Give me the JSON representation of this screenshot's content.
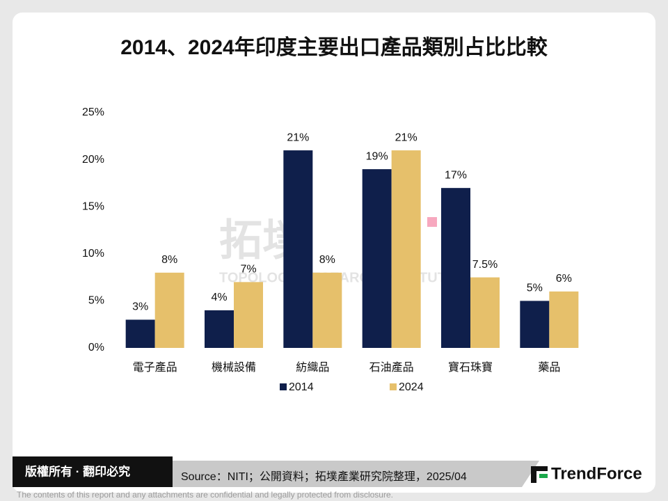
{
  "chart_data": {
    "type": "bar",
    "title": "2014、2024年印度主要出口產品類別占比比較",
    "categories": [
      "電子產品",
      "機械設備",
      "紡織品",
      "石油產品",
      "寶石珠寶",
      "藥品"
    ],
    "series": [
      {
        "name": "2014",
        "color": "#0f1f4b",
        "values": [
          3,
          4,
          21,
          19,
          17,
          5
        ],
        "value_labels": [
          "3%",
          "4%",
          "21%",
          "19%",
          "17%",
          "5%"
        ]
      },
      {
        "name": "2024",
        "color": "#e6c06b",
        "values": [
          8,
          7,
          8,
          21,
          7.5,
          6
        ],
        "value_labels": [
          "8%",
          "7%",
          "8%",
          "21%",
          "7.5%",
          "6%"
        ]
      }
    ],
    "ylim": [
      0,
      25
    ],
    "yticks": [
      {
        "value": 0,
        "label": "0%"
      },
      {
        "value": 5,
        "label": "5%"
      },
      {
        "value": 10,
        "label": "10%"
      },
      {
        "value": 15,
        "label": "15%"
      },
      {
        "value": 20,
        "label": "20%"
      },
      {
        "value": 25,
        "label": "25%"
      }
    ],
    "grid": false,
    "legend": "bottom"
  },
  "watermark": {
    "logo": "拓墣",
    "subtitle": "TOPOLOGY RESEARCH INSTITUTE"
  },
  "footer": {
    "copyright": "版權所有 · 翻印必究",
    "source": "Source：NITI；公開資料；拓墣產業研究院整理，2025/04",
    "brand": "TrendForce",
    "disclaimer": "The contents of this report and any attachments are confidential and legally protected from disclosure."
  }
}
